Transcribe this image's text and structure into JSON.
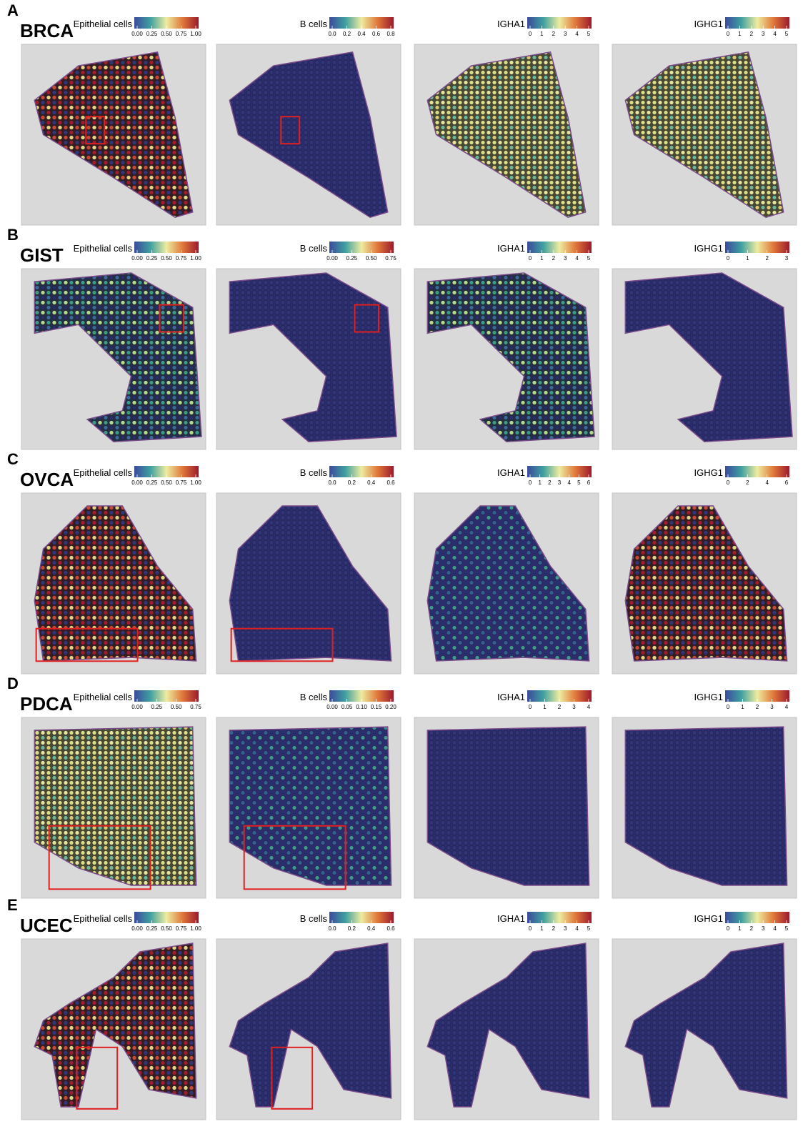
{
  "rows": [
    {
      "letter": "A",
      "name": "BRCA",
      "panels": [
        {
          "label": "Epithelial cells",
          "ticks": [
            "0.00",
            "0.25",
            "0.50",
            "0.75",
            "1.00"
          ]
        },
        {
          "label": "B cells",
          "ticks": [
            "0.0",
            "0.2",
            "0.4",
            "0.6",
            "0.8"
          ]
        },
        {
          "label": "IGHA1",
          "ticks": [
            "0",
            "1",
            "2",
            "3",
            "4",
            "5"
          ]
        },
        {
          "label": "IGHG1",
          "ticks": [
            "0",
            "1",
            "2",
            "3",
            "4",
            "5"
          ]
        }
      ]
    },
    {
      "letter": "B",
      "name": "GIST",
      "panels": [
        {
          "label": "Epithelial cells",
          "ticks": [
            "0.00",
            "0.25",
            "0.50",
            "0.75",
            "1.00"
          ]
        },
        {
          "label": "B cells",
          "ticks": [
            "0.00",
            "0.25",
            "0.50",
            "0.75"
          ]
        },
        {
          "label": "IGHA1",
          "ticks": [
            "0",
            "1",
            "2",
            "3",
            "4",
            "5"
          ]
        },
        {
          "label": "IGHG1",
          "ticks": [
            "0",
            "1",
            "2",
            "3"
          ]
        }
      ]
    },
    {
      "letter": "C",
      "name": "OVCA",
      "panels": [
        {
          "label": "Epithelial cells",
          "ticks": [
            "0.00",
            "0.25",
            "0.50",
            "0.75",
            "1.00"
          ]
        },
        {
          "label": "B cells",
          "ticks": [
            "0.0",
            "0.2",
            "0.4",
            "0.6"
          ]
        },
        {
          "label": "IGHA1",
          "ticks": [
            "0",
            "1",
            "2",
            "3",
            "4",
            "5",
            "6"
          ]
        },
        {
          "label": "IGHG1",
          "ticks": [
            "0",
            "2",
            "4",
            "6"
          ]
        }
      ]
    },
    {
      "letter": "D",
      "name": "PDCA",
      "panels": [
        {
          "label": "Epithelial cells",
          "ticks": [
            "0.00",
            "0.25",
            "0.50",
            "0.75"
          ]
        },
        {
          "label": "B cells",
          "ticks": [
            "0.00",
            "0.05",
            "0.10",
            "0.15",
            "0.20"
          ]
        },
        {
          "label": "IGHA1",
          "ticks": [
            "0",
            "1",
            "2",
            "3",
            "4"
          ]
        },
        {
          "label": "IGHG1",
          "ticks": [
            "0",
            "1",
            "2",
            "3",
            "4"
          ]
        }
      ]
    },
    {
      "letter": "E",
      "name": "UCEC",
      "panels": [
        {
          "label": "Epithelial cells",
          "ticks": [
            "0.00",
            "0.25",
            "0.50",
            "0.75",
            "1.00"
          ]
        },
        {
          "label": "B cells",
          "ticks": [
            "0.0",
            "0.2",
            "0.4",
            "0.6"
          ]
        },
        {
          "label": "IGHA1",
          "ticks": [
            "0",
            "1",
            "2",
            "3",
            "4",
            "5"
          ]
        },
        {
          "label": "IGHG1",
          "ticks": [
            "0",
            "1",
            "2",
            "3",
            "4",
            "5"
          ]
        }
      ]
    }
  ]
}
